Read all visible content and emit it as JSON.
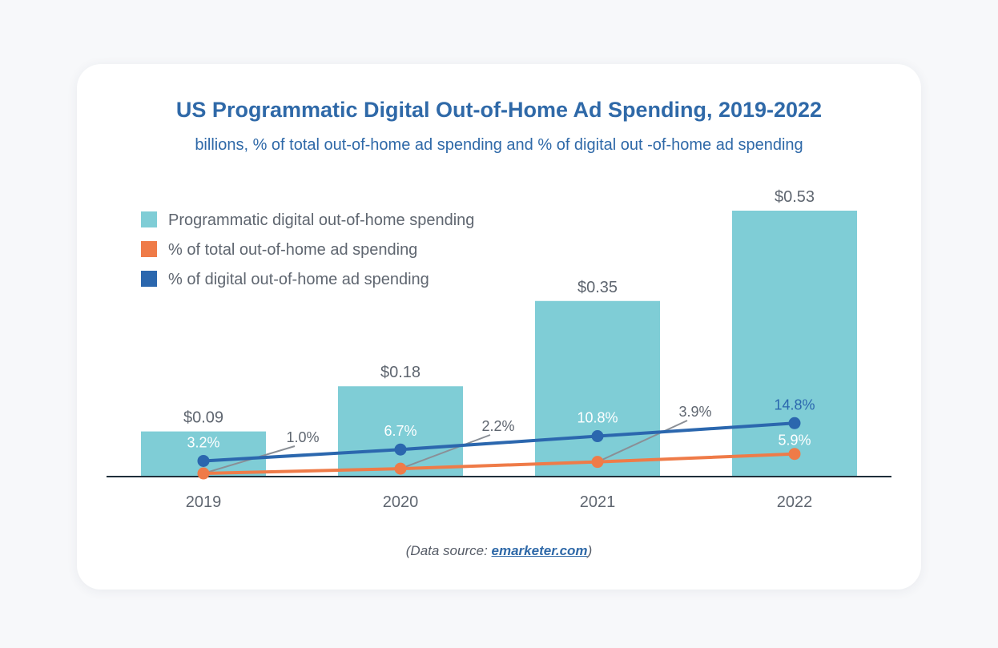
{
  "title": "US Programmatic Digital Out-of-Home Ad Spending, 2019-2022",
  "subtitle": "billions, % of total out-of-home ad spending and % of digital out -of-home ad spending",
  "source": {
    "prefix": "(Data source: ",
    "link": "emarketer.com",
    "suffix": ")"
  },
  "colors": {
    "bar": "#7fcdd6",
    "total": "#ef7b48",
    "digital": "#2b67ae",
    "pointer": "#8a8f96",
    "axis": "#1f2f3a",
    "labels": "#5f6670"
  },
  "chart_data": {
    "type": "bar",
    "categories": [
      "2019",
      "2020",
      "2021",
      "2022"
    ],
    "ylim": [
      0,
      0.55
    ],
    "legend_position": "top-left",
    "series": [
      {
        "name": "Programmatic digital out-of-home spending",
        "type": "bar",
        "values": [
          0.09,
          0.18,
          0.35,
          0.53
        ],
        "labels": [
          "$0.09",
          "$0.18",
          "$0.35",
          "$0.53"
        ]
      },
      {
        "name": "% of total out-of-home ad spending",
        "type": "line",
        "values": [
          1.0,
          2.2,
          3.9,
          5.9
        ],
        "labels": [
          "1.0%",
          "2.2%",
          "3.9%",
          "5.9%"
        ]
      },
      {
        "name": "% of digital out-of-home ad spending",
        "type": "line",
        "values": [
          3.2,
          6.7,
          10.8,
          14.8
        ],
        "labels": [
          "3.2%",
          "6.7%",
          "10.8%",
          "14.8%"
        ]
      }
    ]
  }
}
